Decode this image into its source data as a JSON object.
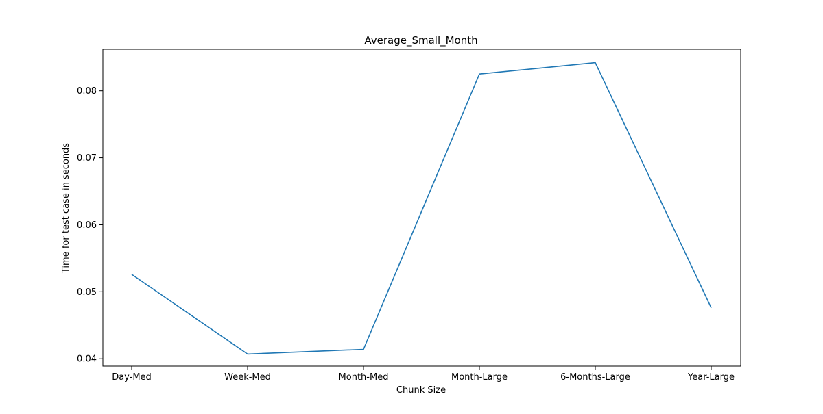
{
  "chart_data": {
    "type": "line",
    "title": "Average_Small_Month",
    "xlabel": "Chunk Size",
    "ylabel": "Time for test case in seconds",
    "categories": [
      "Day-Med",
      "Week-Med",
      "Month-Med",
      "Month-Large",
      "6-Months-Large",
      "Year-Large"
    ],
    "series": [
      {
        "values": [
          0.0526,
          0.0407,
          0.0414,
          0.0825,
          0.0842,
          0.0476
        ]
      }
    ],
    "ylim": [
      0.0389,
      0.0862
    ],
    "yticks": [
      0.04,
      0.05,
      0.06,
      0.07,
      0.08
    ],
    "ytick_labels": [
      "0.04",
      "0.05",
      "0.06",
      "0.07",
      "0.08"
    ],
    "grid": false,
    "line_color": "#1f77b4"
  }
}
